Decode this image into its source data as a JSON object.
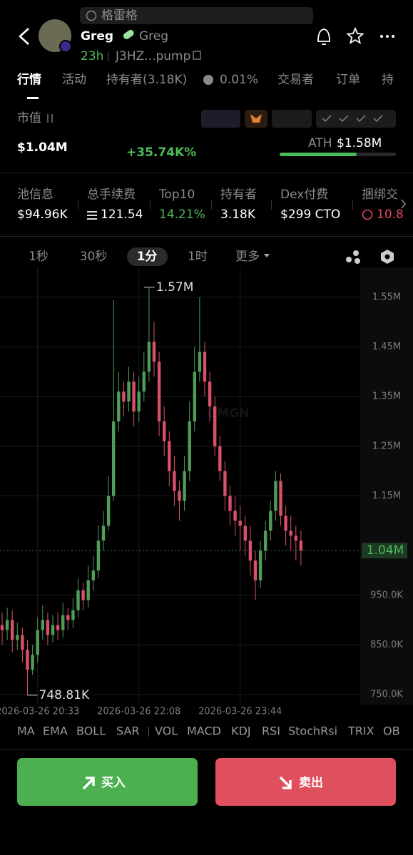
{
  "search_placeholder": "格雷格",
  "token": {
    "name": "Greg",
    "symbol": "Greg",
    "age": "23h",
    "address": "J3HZ...pump"
  },
  "tabs": [
    "行情",
    "活动",
    "持有者(3.18K)",
    "0.01%",
    "交易者",
    "订单",
    "持"
  ],
  "market_cap": {
    "label": "市值",
    "value": "$1.04M",
    "change": "+35.74K%",
    "ath_label": "ATH",
    "ath_value": "$1.58M"
  },
  "stats": [
    {
      "label": "池信息",
      "value": "$94.96K"
    },
    {
      "label": "总手续费",
      "value": "121.54"
    },
    {
      "label": "Top10",
      "value": "14.21%"
    },
    {
      "label": "持有者",
      "value": "3.18K"
    },
    {
      "label": "Dex付费",
      "value": "$299 CTO"
    },
    {
      "label": "捆绑交",
      "value": "10.8"
    }
  ],
  "timeframes": [
    "1秒",
    "30秒",
    "1分",
    "1时",
    "更多"
  ],
  "indicators": [
    "MA",
    "EMA",
    "BOLL",
    "SAR",
    "VOL",
    "MACD",
    "KDJ",
    "RSI",
    "StochRsi",
    "TRIX",
    "OB"
  ],
  "buttons": {
    "buy": "买入",
    "sell": "卖出"
  },
  "chart_data": {
    "type": "candlestick",
    "watermark": "GMGN",
    "categories": [
      null,
      null,
      null,
      null,
      null,
      null,
      null,
      "2026-03-26 20:33",
      null,
      null,
      null,
      null,
      null,
      null,
      null,
      null,
      null,
      null,
      null,
      null,
      null,
      null,
      null,
      null,
      null,
      null,
      null,
      "2026-03-26 22:08",
      null,
      null,
      null,
      null,
      null,
      null,
      null,
      null,
      null,
      null,
      null,
      null,
      null,
      null,
      null,
      null,
      null,
      null,
      null,
      "2026-03-26 23:44",
      null,
      null,
      null,
      null,
      null,
      null,
      null,
      null,
      null,
      null,
      null,
      null
    ],
    "open": [
      890000,
      880000,
      900000,
      860000,
      870000,
      840000,
      800000,
      830000,
      880000,
      900000,
      870000,
      890000,
      880000,
      910000,
      900000,
      920000,
      960000,
      940000,
      980000,
      1000000,
      1060000,
      1090000,
      1150000,
      1300000,
      1360000,
      1340000,
      1380000,
      1320000,
      1360000,
      1400000,
      1460000,
      1420000,
      1300000,
      1260000,
      1200000,
      1160000,
      1140000,
      1200000,
      1300000,
      1400000,
      1440000,
      1380000,
      1330000,
      1250000,
      1200000,
      1150000,
      1120000,
      1100000,
      1090000,
      1060000,
      1020000,
      980000,
      1040000,
      1080000,
      1120000,
      1180000,
      1110000,
      1080000,
      1070000,
      1060000
    ],
    "high": [
      915000,
      925000,
      920000,
      895000,
      885000,
      860000,
      850000,
      905000,
      930000,
      915000,
      910000,
      915000,
      935000,
      925000,
      945000,
      985000,
      975000,
      1010000,
      1030000,
      1090000,
      1120000,
      1190000,
      1545000,
      1400000,
      1380000,
      1410000,
      1400000,
      1390000,
      1440000,
      1570000,
      1500000,
      1440000,
      1330000,
      1280000,
      1230000,
      1180000,
      1230000,
      1340000,
      1450000,
      1550000,
      1460000,
      1400000,
      1350000,
      1270000,
      1220000,
      1170000,
      1150000,
      1130000,
      1110000,
      1090000,
      1040000,
      1060000,
      1100000,
      1140000,
      1200000,
      1195000,
      1130000,
      1110000,
      1090000,
      1080000
    ],
    "low": [
      850000,
      860000,
      835000,
      840000,
      815000,
      748810,
      790000,
      815000,
      860000,
      850000,
      855000,
      860000,
      865000,
      880000,
      885000,
      905000,
      920000,
      925000,
      960000,
      985000,
      1040000,
      1080000,
      1140000,
      1280000,
      1310000,
      1320000,
      1290000,
      1300000,
      1340000,
      1380000,
      1390000,
      1270000,
      1230000,
      1170000,
      1130000,
      1100000,
      1120000,
      1180000,
      1280000,
      1380000,
      1350000,
      1300000,
      1230000,
      1180000,
      1120000,
      1090000,
      1070000,
      1040000,
      1030000,
      990000,
      940000,
      965000,
      1020000,
      1060000,
      1100000,
      1090000,
      1050000,
      1040000,
      1020000,
      1010000
    ],
    "close": [
      880000,
      900000,
      860000,
      870000,
      840000,
      800000,
      830000,
      880000,
      900000,
      870000,
      890000,
      880000,
      910000,
      900000,
      920000,
      960000,
      940000,
      980000,
      1000000,
      1060000,
      1090000,
      1150000,
      1300000,
      1360000,
      1340000,
      1380000,
      1320000,
      1360000,
      1400000,
      1460000,
      1420000,
      1300000,
      1260000,
      1200000,
      1160000,
      1140000,
      1200000,
      1300000,
      1400000,
      1440000,
      1380000,
      1330000,
      1250000,
      1200000,
      1150000,
      1120000,
      1100000,
      1090000,
      1060000,
      1020000,
      980000,
      1040000,
      1080000,
      1120000,
      1180000,
      1110000,
      1080000,
      1070000,
      1060000,
      1040000
    ],
    "up_color": "#4f9d57",
    "down_color": "#d8506a",
    "ylim": [
      730000,
      1610000
    ],
    "yticks": [
      {
        "value": 750000,
        "label": "750.0K"
      },
      {
        "value": 850000,
        "label": "850.0K"
      },
      {
        "value": 950000,
        "label": "950.0K"
      },
      {
        "value": 1150000,
        "label": "1.15M"
      },
      {
        "value": 1250000,
        "label": "1.25M"
      },
      {
        "value": 1350000,
        "label": "1.35M"
      },
      {
        "value": 1450000,
        "label": "1.45M"
      },
      {
        "value": 1550000,
        "label": "1.55M"
      }
    ],
    "grid": true,
    "high_label": {
      "value": 1570000,
      "label": "1.57M"
    },
    "low_label": {
      "value": 748810,
      "label": "748.81K"
    },
    "last_price": {
      "value": 1040000,
      "label": "1.04M"
    }
  }
}
